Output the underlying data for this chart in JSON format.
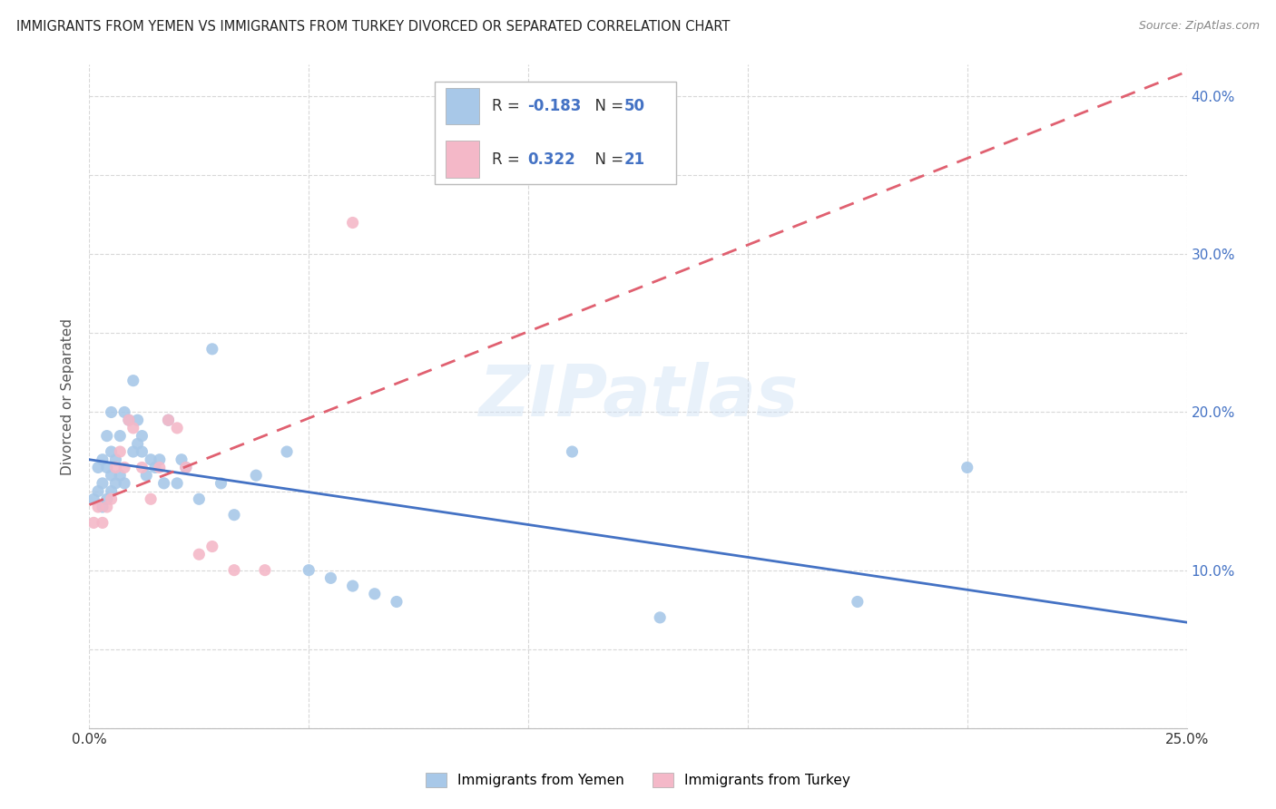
{
  "title": "IMMIGRANTS FROM YEMEN VS IMMIGRANTS FROM TURKEY DIVORCED OR SEPARATED CORRELATION CHART",
  "source": "Source: ZipAtlas.com",
  "ylabel": "Divorced or Separated",
  "xlim": [
    0.0,
    0.25
  ],
  "ylim": [
    0.0,
    0.42
  ],
  "x_ticks": [
    0.0,
    0.05,
    0.1,
    0.15,
    0.2,
    0.25
  ],
  "y_ticks": [
    0.0,
    0.05,
    0.1,
    0.15,
    0.2,
    0.25,
    0.3,
    0.35,
    0.4
  ],
  "y_tick_labels": [
    "",
    "",
    "10.0%",
    "",
    "20.0%",
    "",
    "30.0%",
    "",
    "40.0%"
  ],
  "x_tick_labels": [
    "0.0%",
    "",
    "",
    "",
    "",
    "25.0%"
  ],
  "background_color": "#ffffff",
  "grid_color": "#d8d8d8",
  "watermark": "ZIPatlas",
  "yemen_color": "#a8c8e8",
  "turkey_color": "#f4b8c8",
  "yemen_line_color": "#4472c4",
  "turkey_line_color": "#e06070",
  "legend_R_yemen": "-0.183",
  "legend_N_yemen": "50",
  "legend_R_turkey": "0.322",
  "legend_N_turkey": "21",
  "yemen_scatter_x": [
    0.001,
    0.002,
    0.002,
    0.003,
    0.003,
    0.003,
    0.004,
    0.004,
    0.004,
    0.005,
    0.005,
    0.005,
    0.005,
    0.006,
    0.006,
    0.007,
    0.007,
    0.008,
    0.008,
    0.009,
    0.01,
    0.01,
    0.011,
    0.011,
    0.012,
    0.012,
    0.013,
    0.014,
    0.015,
    0.016,
    0.017,
    0.018,
    0.02,
    0.021,
    0.022,
    0.025,
    0.028,
    0.03,
    0.033,
    0.038,
    0.045,
    0.05,
    0.055,
    0.06,
    0.065,
    0.07,
    0.11,
    0.13,
    0.175,
    0.2
  ],
  "yemen_scatter_y": [
    0.145,
    0.15,
    0.165,
    0.14,
    0.155,
    0.17,
    0.145,
    0.165,
    0.185,
    0.15,
    0.16,
    0.175,
    0.2,
    0.155,
    0.17,
    0.16,
    0.185,
    0.155,
    0.2,
    0.195,
    0.175,
    0.22,
    0.18,
    0.195,
    0.185,
    0.175,
    0.16,
    0.17,
    0.165,
    0.17,
    0.155,
    0.195,
    0.155,
    0.17,
    0.165,
    0.145,
    0.24,
    0.155,
    0.135,
    0.16,
    0.175,
    0.1,
    0.095,
    0.09,
    0.085,
    0.08,
    0.175,
    0.07,
    0.08,
    0.165
  ],
  "turkey_scatter_x": [
    0.001,
    0.002,
    0.003,
    0.004,
    0.005,
    0.006,
    0.007,
    0.008,
    0.009,
    0.01,
    0.012,
    0.014,
    0.016,
    0.018,
    0.02,
    0.022,
    0.025,
    0.028,
    0.033,
    0.04,
    0.06
  ],
  "turkey_scatter_y": [
    0.13,
    0.14,
    0.13,
    0.14,
    0.145,
    0.165,
    0.175,
    0.165,
    0.195,
    0.19,
    0.165,
    0.145,
    0.165,
    0.195,
    0.19,
    0.165,
    0.11,
    0.115,
    0.1,
    0.1,
    0.32
  ]
}
